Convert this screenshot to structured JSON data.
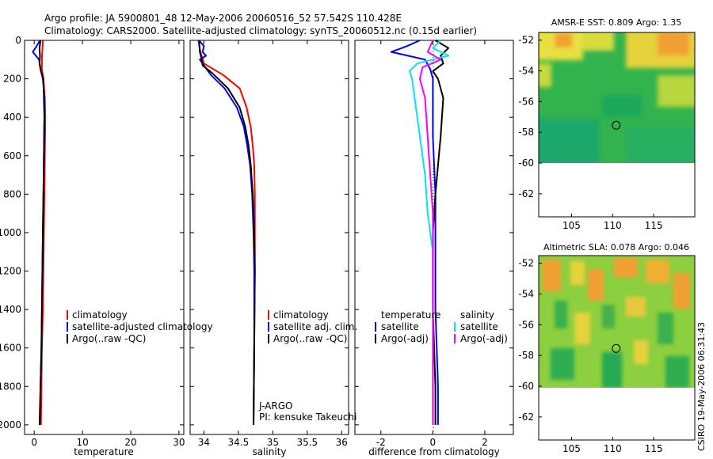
{
  "header": {
    "line1": "Argo profile: JA 5900801_48 12-May-2006 20060516_52 57.542S 110.428E",
    "line2": "Climatology: CARS2000. Satellite-adjusted climatology: synTS_20060512.nc (0.15d earlier)"
  },
  "side_stamp": "CSIRO 19-May-2006 06:31:43",
  "colors": {
    "climatology": "#ff0000",
    "satellite": "#0000ff",
    "argo": "#000000",
    "sat_salinity": "#00e5ee",
    "argo_salinity": "#ff00ff"
  },
  "chart_data": [
    {
      "id": "temperature",
      "type": "line",
      "xlabel": "temperature",
      "xlim": [
        -2,
        31
      ],
      "ylim": [
        2050,
        0
      ],
      "xticks": [
        0,
        10,
        20,
        30
      ],
      "xtick_labels": [
        "0",
        "10",
        "20",
        "30"
      ],
      "yticks": [
        0,
        200,
        400,
        600,
        800,
        1000,
        1200,
        1400,
        1600,
        1800,
        2000
      ],
      "ytick_labels": [
        "0",
        "200",
        "400",
        "600",
        "800",
        "1000",
        "1200",
        "1400",
        "1600",
        "1800",
        "2000"
      ],
      "legend": [
        "climatology",
        "satellite-adjusted climatology",
        "Argo(..raw -QC)"
      ],
      "series": [
        {
          "name": "climatology",
          "color": "#ff0000",
          "depth": [
            0,
            50,
            100,
            150,
            200,
            300,
            400,
            600,
            800,
            1000,
            1200,
            1400,
            1600,
            1800,
            2000
          ],
          "values": [
            1.8,
            1.7,
            1.6,
            1.6,
            1.9,
            2.2,
            2.3,
            2.2,
            2.1,
            2.0,
            1.9,
            1.8,
            1.6,
            1.5,
            1.4
          ]
        },
        {
          "name": "satellite-adjusted climatology",
          "color": "#0000ff",
          "depth": [
            0,
            30,
            60,
            100,
            150,
            200,
            300,
            400,
            600,
            800,
            1000,
            1200,
            1400,
            1600,
            1800,
            2000
          ],
          "values": [
            1.2,
            0.5,
            -0.3,
            1.0,
            1.3,
            1.8,
            2.1,
            2.1,
            2.0,
            1.9,
            1.8,
            1.7,
            1.6,
            1.5,
            1.3,
            1.2
          ]
        },
        {
          "name": "Argo(..raw -QC)",
          "color": "#000000",
          "depth": [
            0,
            40,
            80,
            120,
            160,
            200,
            300,
            400,
            600,
            800,
            1000,
            1200,
            1400,
            1600,
            1800,
            2000
          ],
          "values": [
            1.3,
            1.1,
            1.2,
            1.1,
            1.4,
            1.9,
            2.0,
            2.1,
            2.0,
            1.9,
            1.8,
            1.7,
            1.6,
            1.5,
            1.3,
            1.1
          ]
        }
      ]
    },
    {
      "id": "salinity",
      "type": "line",
      "xlabel": "salinity",
      "xlim": [
        33.8,
        36.1
      ],
      "ylim": [
        2050,
        0
      ],
      "xticks": [
        34,
        34.5,
        35,
        35.5,
        36
      ],
      "xtick_labels": [
        "34",
        "34.5",
        "35",
        "35.5",
        "36"
      ],
      "legend": [
        "climatology",
        "satellite adj. clim.",
        "Argo(..raw -QC)"
      ],
      "annotations": [
        "J-ARGO",
        "PI: kensuke Takeuchi"
      ],
      "series": [
        {
          "name": "climatology",
          "color": "#ff0000",
          "depth": [
            0,
            60,
            120,
            180,
            250,
            350,
            450,
            550,
            650,
            800,
            1000,
            1200,
            1600,
            2000
          ],
          "values": [
            33.92,
            33.95,
            34.0,
            34.28,
            34.52,
            34.62,
            34.68,
            34.71,
            34.73,
            34.74,
            34.74,
            34.74,
            34.73,
            34.72
          ]
        },
        {
          "name": "satellite adj. clim.",
          "color": "#0000ff",
          "depth": [
            0,
            30,
            60,
            80,
            100,
            130,
            180,
            250,
            350,
            450,
            550,
            650,
            800,
            1000,
            1200,
            1600,
            2000
          ],
          "values": [
            33.93,
            34.0,
            33.98,
            34.03,
            33.94,
            34.0,
            34.1,
            34.3,
            34.48,
            34.58,
            34.63,
            34.67,
            34.7,
            34.72,
            34.73,
            34.73,
            34.72
          ]
        },
        {
          "name": "Argo(..raw -QC)",
          "color": "#000000",
          "depth": [
            0,
            60,
            100,
            130,
            170,
            250,
            350,
            450,
            550,
            650,
            800,
            1000,
            1200,
            1600,
            2000
          ],
          "values": [
            33.93,
            33.94,
            33.97,
            33.98,
            34.12,
            34.35,
            34.52,
            34.6,
            34.65,
            34.68,
            34.71,
            34.73,
            34.74,
            34.73,
            34.72
          ]
        }
      ]
    },
    {
      "id": "difference",
      "type": "line",
      "xlabel": "difference from climatology",
      "xlim": [
        -3,
        3.1
      ],
      "ylim": [
        2050,
        0
      ],
      "xticks": [
        -2,
        0,
        2
      ],
      "xtick_labels": [
        "-2",
        "0",
        "2"
      ],
      "legend_groups": [
        {
          "title": "temperature",
          "items": [
            "satellite",
            "Argo(-adj)"
          ]
        },
        {
          "title": "salinity",
          "items": [
            "satellite",
            "Argo(-adj)"
          ]
        }
      ],
      "series": [
        {
          "name": "temperature satellite",
          "color": "#0000ff",
          "depth": [
            0,
            30,
            60,
            100,
            150,
            200,
            300,
            500,
            800,
            1000,
            1400,
            1800,
            2000
          ],
          "values": [
            -0.5,
            -1.0,
            -1.6,
            -0.3,
            -0.1,
            0.0,
            0.0,
            0.0,
            0.1,
            0.1,
            0.1,
            0.2,
            0.2
          ]
        },
        {
          "name": "temperature Argo(-adj)",
          "color": "#000000",
          "depth": [
            0,
            40,
            80,
            120,
            160,
            200,
            300,
            500,
            800,
            1000,
            1400,
            1800,
            2000
          ],
          "values": [
            0.1,
            0.6,
            0.3,
            0.4,
            0.0,
            0.2,
            0.4,
            0.3,
            0.1,
            0.0,
            0.0,
            0.1,
            0.1
          ]
        },
        {
          "name": "salinity satellite",
          "color": "#00e5ee",
          "depth": [
            0,
            40,
            80,
            120,
            160,
            200,
            300,
            500,
            700,
            900,
            1000,
            1100,
            1300,
            1500,
            1800,
            2000
          ],
          "values": [
            0.3,
            0.0,
            0.6,
            -0.6,
            -0.9,
            -0.8,
            -0.7,
            -0.5,
            -0.3,
            -0.2,
            -0.1,
            0.0,
            0.0,
            0.0,
            0.0,
            0.0
          ]
        },
        {
          "name": "salinity Argo(-adj)",
          "color": "#ff00ff",
          "depth": [
            0,
            60,
            100,
            140,
            200,
            300,
            500,
            700,
            900,
            1000,
            1200,
            1600,
            2000
          ],
          "values": [
            0.0,
            -0.2,
            0.3,
            -0.4,
            -0.5,
            -0.3,
            -0.2,
            -0.1,
            0.0,
            0.0,
            0.0,
            0.0,
            0.0
          ]
        }
      ]
    },
    {
      "id": "amsr_sst",
      "type": "heatmap",
      "title": "AMSR-E SST: 0.809 Argo: 1.35",
      "xlim": [
        101,
        120
      ],
      "ylim": [
        -63.5,
        -51.5
      ],
      "data_ylim_bottom": -60,
      "xticks": [
        105,
        110,
        115
      ],
      "xtick_labels": [
        "105",
        "110",
        "115"
      ],
      "yticks": [
        -52,
        -54,
        -56,
        -58,
        -60,
        -62
      ],
      "ytick_labels": [
        "-52",
        "-54",
        "-56",
        "-58",
        "-60",
        "-62"
      ],
      "marker": [
        110.43,
        -57.54
      ]
    },
    {
      "id": "altimetric_sla",
      "type": "heatmap",
      "title": "Altimetric SLA: 0.078 Argo: 0.046",
      "xlim": [
        101,
        120
      ],
      "ylim": [
        -63.5,
        -51.5
      ],
      "data_ylim_bottom": -60,
      "xticks": [
        105,
        110,
        115
      ],
      "xtick_labels": [
        "105",
        "110",
        "115"
      ],
      "yticks": [
        -52,
        -54,
        -56,
        -58,
        -60,
        -62
      ],
      "ytick_labels": [
        "-52",
        "-54",
        "-56",
        "-58",
        "-60",
        "-62"
      ],
      "marker": [
        110.43,
        -57.54
      ]
    }
  ]
}
